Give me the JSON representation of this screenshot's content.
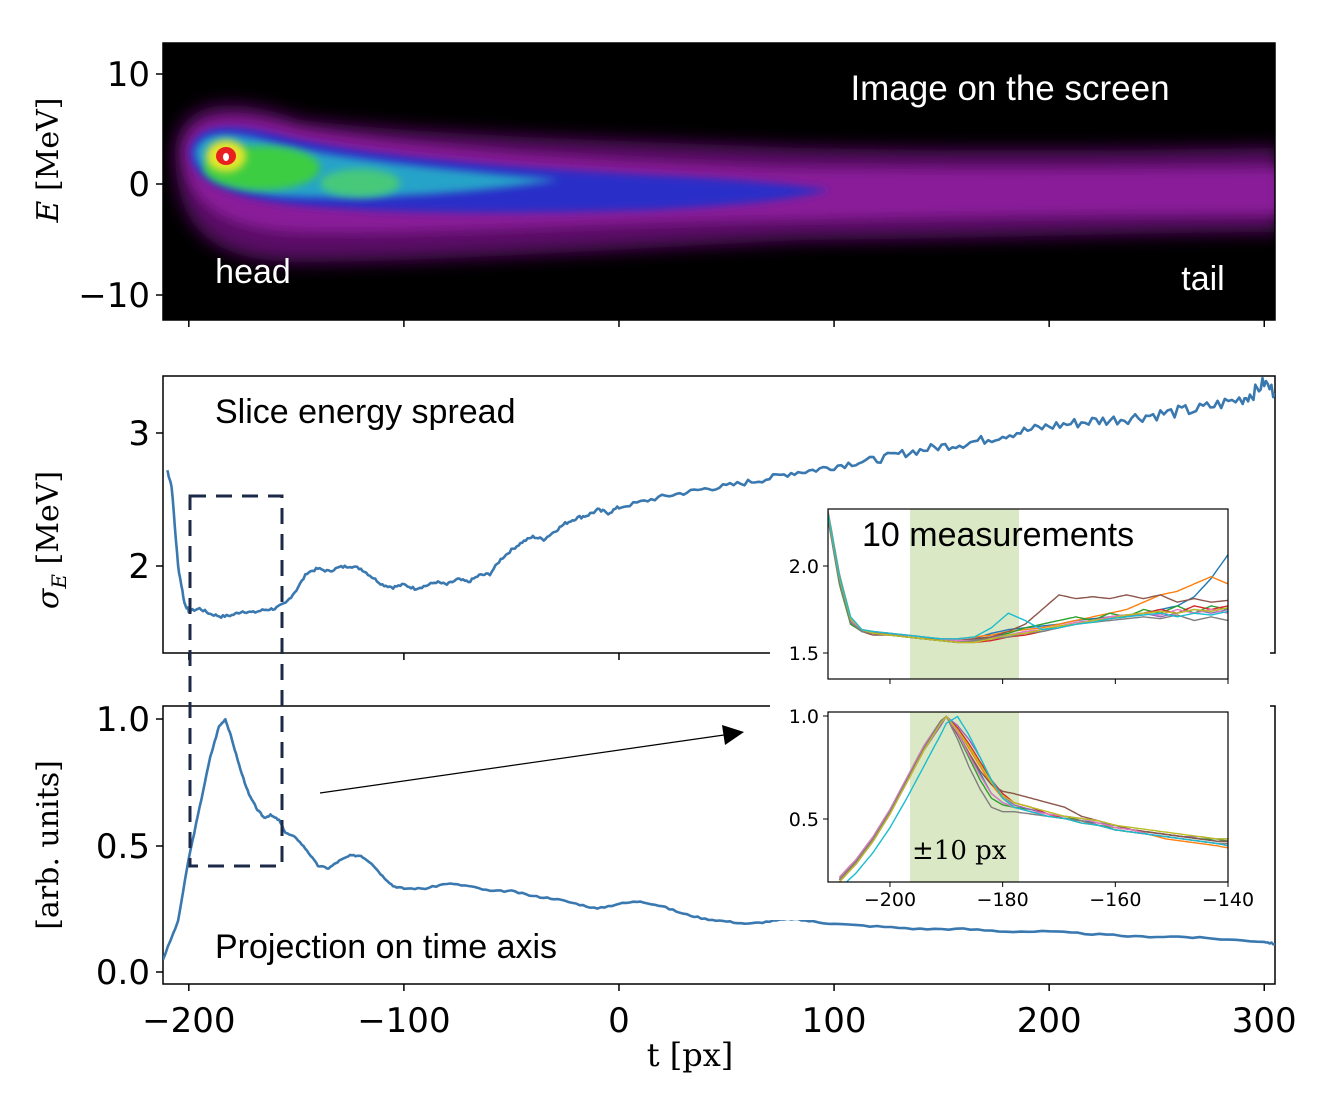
{
  "image_panel": {
    "title": "Image on the screen",
    "head_label": "head",
    "tail_label": "tail",
    "ylabel_sym": "E",
    "ylabel_unit": " [MeV]",
    "yticks": [
      "10",
      "0",
      "−10"
    ]
  },
  "spread_panel": {
    "title": "Slice energy spread",
    "ylabel_sym": "σ",
    "ylabel_sub": "E",
    "ylabel_unit": " [MeV]",
    "yticks": [
      "3",
      "2"
    ]
  },
  "proj_panel": {
    "title": "Projection on time axis",
    "ylabel": "[arb. units]",
    "yticks": [
      "1.0",
      "0.5",
      "0.0"
    ]
  },
  "xaxis": {
    "label": "t [px]",
    "ticks": [
      "−200",
      "−100",
      "0",
      "100",
      "200",
      "300"
    ]
  },
  "inset_top": {
    "title": "10 measurements",
    "yticks": [
      "2.0",
      "1.5"
    ]
  },
  "inset_bottom": {
    "annotation": "±10 px",
    "yticks": [
      "1.0",
      "0.5"
    ],
    "xticks": [
      "−200",
      "−180",
      "−160",
      "−140"
    ]
  },
  "colors": {
    "main_line": "#3a78b0",
    "highlight_band": "#dbe8c6",
    "dashed_box": "#1c2a48",
    "series": [
      "#1f77b4",
      "#ff7f0e",
      "#2ca02c",
      "#d62728",
      "#9467bd",
      "#8c564b",
      "#e377c2",
      "#7f7f7f",
      "#bcbd22",
      "#17becf"
    ]
  },
  "chart_data": [
    {
      "type": "heatmap",
      "title": "Image on the screen",
      "xlabel": "t [px]",
      "ylabel": "E [MeV]",
      "xlim": [
        -212,
        305
      ],
      "ylim": [
        -12.5,
        12.5
      ],
      "description_points": {
        "peak_t": -183,
        "peak_E": 2.5,
        "ridge_t": [
          -205,
          -183,
          -150,
          -100,
          -50,
          0,
          50,
          100,
          200,
          300
        ],
        "ridge_E": [
          1.5,
          2.5,
          1.5,
          0,
          -0.8,
          -1.2,
          -1.0,
          -0.5,
          0,
          0.5
        ]
      }
    },
    {
      "type": "line",
      "title": "Slice energy spread",
      "xlabel": "t [px]",
      "ylabel": "σE [MeV]",
      "xlim": [
        -212,
        305
      ],
      "ylim": [
        1.4,
        3.4
      ],
      "x": [
        -210,
        -208,
        -205,
        -202,
        -200,
        -195,
        -190,
        -185,
        -180,
        -175,
        -170,
        -165,
        -160,
        -155,
        -150,
        -145,
        -140,
        -135,
        -130,
        -125,
        -120,
        -115,
        -110,
        -105,
        -100,
        -95,
        -90,
        -85,
        -80,
        -75,
        -70,
        -65,
        -60,
        -55,
        -50,
        -45,
        -40,
        -35,
        -30,
        -25,
        -20,
        -15,
        -10,
        -5,
        0,
        10,
        20,
        30,
        40,
        50,
        60,
        70,
        80,
        90,
        100,
        110,
        120,
        130,
        140,
        150,
        160,
        170,
        180,
        190,
        200,
        210,
        220,
        230,
        240,
        250,
        260,
        270,
        280,
        290,
        295,
        300,
        305
      ],
      "y": [
        2.72,
        2.6,
        2.0,
        1.72,
        1.66,
        1.68,
        1.64,
        1.62,
        1.63,
        1.66,
        1.65,
        1.67,
        1.68,
        1.72,
        1.82,
        1.95,
        1.98,
        1.96,
        1.99,
        2.0,
        1.98,
        1.92,
        1.86,
        1.84,
        1.86,
        1.83,
        1.85,
        1.88,
        1.86,
        1.9,
        1.88,
        1.93,
        1.94,
        2.05,
        2.12,
        2.18,
        2.22,
        2.2,
        2.26,
        2.32,
        2.36,
        2.38,
        2.42,
        2.4,
        2.44,
        2.48,
        2.52,
        2.55,
        2.58,
        2.6,
        2.63,
        2.66,
        2.7,
        2.72,
        2.75,
        2.78,
        2.8,
        2.84,
        2.87,
        2.9,
        2.92,
        2.95,
        2.99,
        3.02,
        3.05,
        3.07,
        3.09,
        3.1,
        3.12,
        3.14,
        3.16,
        3.18,
        3.22,
        3.26,
        3.3,
        3.38,
        3.3
      ]
    },
    {
      "type": "line",
      "title": "Projection on time axis",
      "xlabel": "t [px]",
      "ylabel": "[arb. units]",
      "xlim": [
        -212,
        305
      ],
      "ylim": [
        -0.02,
        1.06
      ],
      "x": [
        -212,
        -205,
        -200,
        -195,
        -190,
        -186,
        -183,
        -180,
        -176,
        -172,
        -168,
        -165,
        -162,
        -158,
        -155,
        -150,
        -145,
        -140,
        -135,
        -130,
        -125,
        -120,
        -115,
        -110,
        -105,
        -100,
        -90,
        -80,
        -70,
        -60,
        -50,
        -40,
        -30,
        -20,
        -10,
        0,
        10,
        20,
        30,
        40,
        50,
        60,
        70,
        80,
        90,
        100,
        120,
        140,
        160,
        180,
        200,
        220,
        240,
        260,
        280,
        300,
        305
      ],
      "y": [
        0.05,
        0.2,
        0.45,
        0.65,
        0.85,
        0.97,
        1.0,
        0.92,
        0.8,
        0.7,
        0.64,
        0.61,
        0.62,
        0.6,
        0.55,
        0.53,
        0.48,
        0.42,
        0.41,
        0.44,
        0.46,
        0.46,
        0.43,
        0.38,
        0.34,
        0.33,
        0.33,
        0.35,
        0.34,
        0.32,
        0.32,
        0.3,
        0.29,
        0.27,
        0.25,
        0.27,
        0.28,
        0.26,
        0.23,
        0.21,
        0.2,
        0.19,
        0.2,
        0.21,
        0.2,
        0.19,
        0.18,
        0.17,
        0.17,
        0.16,
        0.16,
        0.15,
        0.14,
        0.14,
        0.13,
        0.12,
        0.11
      ]
    },
    {
      "type": "line",
      "title": "10 measurements",
      "xlim": [
        -211,
        -140
      ],
      "ylim": [
        1.4,
        2.33
      ],
      "highlight_band_x": [
        -200,
        -180
      ],
      "x": [
        -211,
        -209,
        -207,
        -205,
        -203,
        -200,
        -197,
        -194,
        -191,
        -188,
        -185,
        -182,
        -179,
        -176,
        -173,
        -170,
        -167,
        -164,
        -161,
        -158,
        -155,
        -152,
        -149,
        -146,
        -143,
        -140
      ],
      "series": [
        {
          "values": [
            2.3,
            1.95,
            1.72,
            1.66,
            1.65,
            1.64,
            1.63,
            1.62,
            1.61,
            1.6,
            1.62,
            1.65,
            1.67,
            1.68,
            1.69,
            1.7,
            1.72,
            1.73,
            1.74,
            1.75,
            1.76,
            1.78,
            1.8,
            1.85,
            1.95,
            2.08
          ]
        },
        {
          "values": [
            2.32,
            1.98,
            1.74,
            1.67,
            1.66,
            1.65,
            1.64,
            1.63,
            1.62,
            1.62,
            1.63,
            1.64,
            1.66,
            1.67,
            1.68,
            1.7,
            1.72,
            1.74,
            1.76,
            1.78,
            1.82,
            1.86,
            1.88,
            1.92,
            1.96,
            1.92
          ]
        },
        {
          "values": [
            2.28,
            1.92,
            1.7,
            1.66,
            1.65,
            1.64,
            1.63,
            1.62,
            1.61,
            1.6,
            1.61,
            1.63,
            1.65,
            1.68,
            1.7,
            1.72,
            1.74,
            1.72,
            1.76,
            1.74,
            1.78,
            1.76,
            1.8,
            1.76,
            1.8,
            1.78
          ]
        },
        {
          "values": [
            2.3,
            1.96,
            1.73,
            1.67,
            1.65,
            1.65,
            1.63,
            1.62,
            1.61,
            1.6,
            1.6,
            1.61,
            1.63,
            1.64,
            1.66,
            1.68,
            1.7,
            1.72,
            1.74,
            1.75,
            1.76,
            1.78,
            1.76,
            1.8,
            1.78,
            1.8
          ]
        },
        {
          "values": [
            2.31,
            1.97,
            1.72,
            1.66,
            1.65,
            1.64,
            1.64,
            1.63,
            1.62,
            1.61,
            1.62,
            1.63,
            1.64,
            1.66,
            1.67,
            1.69,
            1.7,
            1.72,
            1.73,
            1.74,
            1.76,
            1.74,
            1.76,
            1.78,
            1.76,
            1.78
          ]
        },
        {
          "values": [
            2.29,
            1.94,
            1.71,
            1.66,
            1.64,
            1.64,
            1.63,
            1.62,
            1.62,
            1.61,
            1.62,
            1.63,
            1.66,
            1.7,
            1.78,
            1.86,
            1.84,
            1.85,
            1.84,
            1.86,
            1.84,
            1.86,
            1.82,
            1.84,
            1.82,
            1.83
          ]
        },
        {
          "values": [
            2.3,
            1.95,
            1.72,
            1.67,
            1.66,
            1.65,
            1.64,
            1.63,
            1.62,
            1.61,
            1.61,
            1.62,
            1.64,
            1.66,
            1.67,
            1.69,
            1.71,
            1.72,
            1.74,
            1.75,
            1.76,
            1.75,
            1.78,
            1.76,
            1.78,
            1.76
          ]
        },
        {
          "values": [
            2.27,
            1.93,
            1.71,
            1.66,
            1.65,
            1.64,
            1.63,
            1.62,
            1.61,
            1.6,
            1.61,
            1.62,
            1.63,
            1.65,
            1.66,
            1.68,
            1.7,
            1.71,
            1.72,
            1.73,
            1.74,
            1.73,
            1.75,
            1.72,
            1.74,
            1.72
          ]
        },
        {
          "values": [
            2.3,
            1.96,
            1.73,
            1.67,
            1.65,
            1.64,
            1.63,
            1.62,
            1.61,
            1.6,
            1.6,
            1.62,
            1.64,
            1.65,
            1.67,
            1.69,
            1.7,
            1.72,
            1.73,
            1.75,
            1.76,
            1.77,
            1.76,
            1.78,
            1.77,
            1.79
          ]
        },
        {
          "values": [
            2.31,
            1.97,
            1.74,
            1.67,
            1.66,
            1.65,
            1.64,
            1.63,
            1.62,
            1.62,
            1.63,
            1.68,
            1.76,
            1.72,
            1.67,
            1.68,
            1.7,
            1.71,
            1.73,
            1.74,
            1.75,
            1.76,
            1.74,
            1.76,
            1.75,
            1.77
          ]
        }
      ]
    },
    {
      "type": "line",
      "xlim": [
        -211,
        -140
      ],
      "ylim": [
        0.27,
        1.02
      ],
      "highlight_band_x": [
        -200,
        -180
      ],
      "x": [
        -209,
        -206,
        -203,
        -200,
        -197,
        -194,
        -191,
        -190,
        -188,
        -186,
        -184,
        -182,
        -180,
        -178,
        -175,
        -172,
        -169,
        -166,
        -163,
        -160,
        -157,
        -154,
        -151,
        -148,
        -145,
        -142,
        -140
      ],
      "series": [
        {
          "values": [
            0.28,
            0.36,
            0.46,
            0.58,
            0.72,
            0.86,
            0.98,
            1.0,
            0.93,
            0.84,
            0.75,
            0.66,
            0.62,
            0.6,
            0.58,
            0.56,
            0.55,
            0.54,
            0.53,
            0.52,
            0.5,
            0.49,
            0.48,
            0.47,
            0.46,
            0.45,
            0.45
          ]
        },
        {
          "values": [
            0.27,
            0.35,
            0.45,
            0.57,
            0.71,
            0.85,
            0.97,
            1.0,
            0.94,
            0.86,
            0.78,
            0.7,
            0.64,
            0.6,
            0.58,
            0.56,
            0.55,
            0.53,
            0.52,
            0.5,
            0.49,
            0.48,
            0.46,
            0.45,
            0.44,
            0.43,
            0.42
          ]
        },
        {
          "values": [
            0.29,
            0.37,
            0.47,
            0.59,
            0.73,
            0.87,
            0.98,
            1.0,
            0.92,
            0.82,
            0.72,
            0.64,
            0.61,
            0.6,
            0.59,
            0.57,
            0.56,
            0.54,
            0.52,
            0.51,
            0.5,
            0.49,
            0.48,
            0.47,
            0.46,
            0.46,
            0.45
          ]
        },
        {
          "values": [
            0.28,
            0.36,
            0.46,
            0.58,
            0.72,
            0.86,
            0.97,
            1.0,
            0.95,
            0.88,
            0.8,
            0.72,
            0.66,
            0.62,
            0.6,
            0.57,
            0.55,
            0.54,
            0.52,
            0.5,
            0.49,
            0.48,
            0.47,
            0.46,
            0.45,
            0.44,
            0.44
          ]
        },
        {
          "values": [
            0.27,
            0.35,
            0.45,
            0.57,
            0.71,
            0.85,
            0.96,
            1.0,
            0.96,
            0.9,
            0.82,
            0.72,
            0.65,
            0.61,
            0.59,
            0.57,
            0.56,
            0.55,
            0.53,
            0.52,
            0.5,
            0.49,
            0.48,
            0.47,
            0.47,
            0.46,
            0.46
          ]
        },
        {
          "values": [
            0.28,
            0.36,
            0.46,
            0.58,
            0.72,
            0.86,
            0.98,
            1.0,
            0.92,
            0.84,
            0.76,
            0.7,
            0.67,
            0.66,
            0.64,
            0.62,
            0.6,
            0.56,
            0.54,
            0.52,
            0.5,
            0.49,
            0.48,
            0.47,
            0.46,
            0.45,
            0.45
          ]
        },
        {
          "values": [
            0.29,
            0.37,
            0.47,
            0.59,
            0.73,
            0.87,
            0.98,
            1.0,
            0.93,
            0.83,
            0.74,
            0.66,
            0.62,
            0.6,
            0.58,
            0.57,
            0.56,
            0.55,
            0.53,
            0.51,
            0.5,
            0.48,
            0.47,
            0.46,
            0.45,
            0.44,
            0.43
          ]
        },
        {
          "values": [
            0.28,
            0.36,
            0.46,
            0.58,
            0.72,
            0.86,
            0.98,
            1.0,
            0.9,
            0.78,
            0.68,
            0.6,
            0.58,
            0.58,
            0.57,
            0.56,
            0.55,
            0.54,
            0.52,
            0.5,
            0.49,
            0.48,
            0.47,
            0.46,
            0.45,
            0.44,
            0.44
          ]
        },
        {
          "values": [
            0.27,
            0.35,
            0.45,
            0.57,
            0.71,
            0.85,
            0.97,
            1.0,
            0.94,
            0.87,
            0.79,
            0.71,
            0.65,
            0.62,
            0.6,
            0.58,
            0.56,
            0.55,
            0.54,
            0.52,
            0.51,
            0.5,
            0.49,
            0.48,
            0.47,
            0.46,
            0.46
          ]
        },
        {
          "values": [
            0.24,
            0.31,
            0.4,
            0.51,
            0.64,
            0.78,
            0.92,
            0.97,
            1.0,
            0.92,
            0.82,
            0.72,
            0.64,
            0.6,
            0.58,
            0.56,
            0.55,
            0.53,
            0.52,
            0.5,
            0.49,
            0.48,
            0.47,
            0.46,
            0.45,
            0.44,
            0.43
          ]
        }
      ]
    }
  ]
}
